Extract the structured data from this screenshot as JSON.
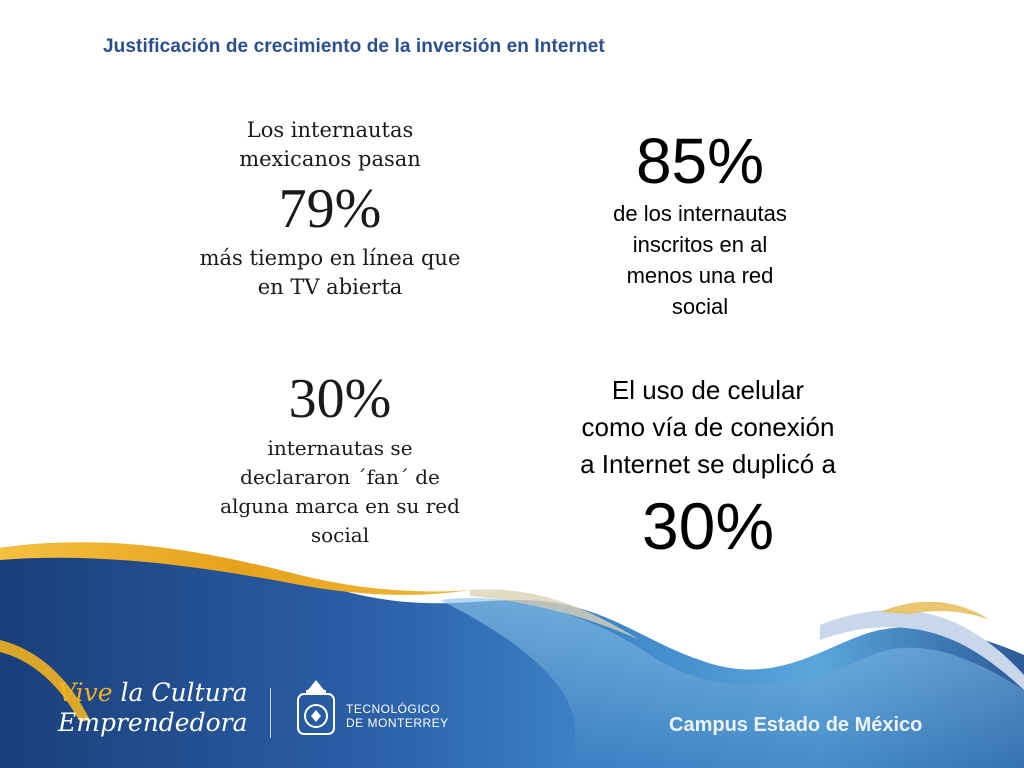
{
  "title": "Justificación de crecimiento de la inversión en Internet",
  "stats": [
    {
      "pre": [
        "Los internautas",
        "mexicanos pasan"
      ],
      "value": "79%",
      "post": [
        "más tiempo en línea que",
        "en TV abierta"
      ]
    },
    {
      "value": "85%",
      "post": [
        "de los internautas",
        "inscritos en al",
        "menos una red",
        "social"
      ]
    },
    {
      "value": "30%",
      "post": [
        "internautas se",
        "declararon ´fan´ de",
        "alguna marca en su red",
        "social"
      ]
    },
    {
      "pre": [
        "El uso de celular",
        "como vía de conexión",
        "a Internet se duplicó a"
      ],
      "value": "30%"
    }
  ],
  "footer": {
    "slogan_line1_a": "Vive",
    "slogan_line1_b": "la Cultura",
    "slogan_line2": "Emprendedora",
    "institution_line1": "TECNOLÓGICO",
    "institution_line2": "DE MONTERREY",
    "campus": "Campus Estado de México"
  },
  "colors": {
    "title": "#2a4f8f",
    "slogan_accent": "#f2b320",
    "footer_blue": "#1d4a8c",
    "wave_gold": "#e8a820"
  }
}
